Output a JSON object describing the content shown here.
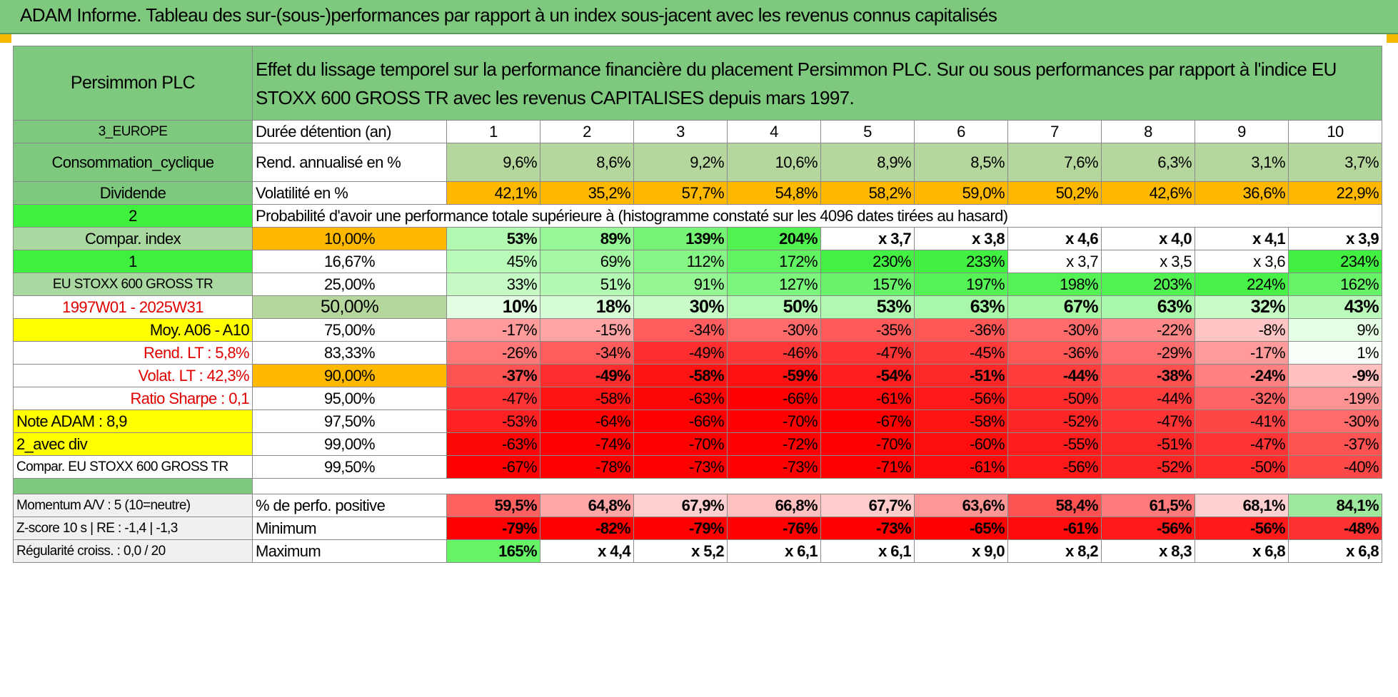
{
  "title": "ADAM Informe. Tableau des sur-(sous-)performances par rapport à un index sous-jacent avec les revenus connus capitalisés",
  "company": "Persimmon PLC",
  "description": "Effet du lissage temporel sur la performance financière du placement Persimmon PLC. Sur ou sous performances par rapport à l'indice EU STOXX 600 GROSS TR avec les revenus CAPITALISES depuis mars 1997.",
  "left": {
    "region": "3_EUROPE",
    "sector": "Consommation_cyclique",
    "dividend": "Dividende",
    "val2": "2",
    "compar_index": "Compar. index",
    "val1": "1",
    "index_name": "EU STOXX 600 GROSS TR",
    "period": "1997W01 - 2025W31",
    "moy": "Moy. A06 - A10",
    "rend_lt": "Rend. LT :    5,8%",
    "volat_lt": "Volat. LT :    42,3%",
    "sharpe": "Ratio Sharpe :    0,1",
    "note": "Note ADAM : 8,9",
    "avec_div": "2_avec div",
    "compar_full": "Compar. EU STOXX 600 GROSS TR",
    "momentum": "Momentum A/V : 5 (10=neutre)",
    "zscore": "Z-score 10 s | RE : -1,4 | -1,3",
    "regularite": "Régularité croiss. : 0,0 / 20"
  },
  "labels": {
    "duree": "Durée détention (an)",
    "rend": "Rend. annualisé en %",
    "vol": "Volatilité en %",
    "prob": "Probabilité d'avoir une performance totale supérieure à (histogramme constaté sur les 4096 dates tirées au hasard)",
    "pos": "% de perfo. positive",
    "min": "Minimum",
    "max": "Maximum"
  },
  "years": [
    "1",
    "2",
    "3",
    "4",
    "5",
    "6",
    "7",
    "8",
    "9",
    "10"
  ],
  "rend": [
    "9,6%",
    "8,6%",
    "9,2%",
    "10,6%",
    "8,9%",
    "8,5%",
    "7,6%",
    "6,3%",
    "3,1%",
    "3,7%"
  ],
  "vol": [
    "42,1%",
    "35,2%",
    "57,7%",
    "54,8%",
    "58,2%",
    "59,0%",
    "50,2%",
    "42,6%",
    "36,6%",
    "22,9%"
  ],
  "prob_rows": [
    {
      "pct": "10,00%",
      "vals": [
        "53%",
        "89%",
        "139%",
        "204%",
        "x 3,7",
        "x 3,8",
        "x 4,6",
        "x 4,0",
        "x 4,1",
        "x 3,9"
      ]
    },
    {
      "pct": "16,67%",
      "vals": [
        "45%",
        "69%",
        "112%",
        "172%",
        "230%",
        "233%",
        "x 3,7",
        "x 3,5",
        "x 3,6",
        "234%"
      ]
    },
    {
      "pct": "25,00%",
      "vals": [
        "33%",
        "51%",
        "91%",
        "127%",
        "157%",
        "197%",
        "198%",
        "203%",
        "224%",
        "162%"
      ]
    },
    {
      "pct": "50,00%",
      "vals": [
        "10%",
        "18%",
        "30%",
        "50%",
        "53%",
        "63%",
        "67%",
        "63%",
        "32%",
        "43%"
      ]
    },
    {
      "pct": "75,00%",
      "vals": [
        "-17%",
        "-15%",
        "-34%",
        "-30%",
        "-35%",
        "-36%",
        "-30%",
        "-22%",
        "-8%",
        "9%"
      ]
    },
    {
      "pct": "83,33%",
      "vals": [
        "-26%",
        "-34%",
        "-49%",
        "-46%",
        "-47%",
        "-45%",
        "-36%",
        "-29%",
        "-17%",
        "1%"
      ]
    },
    {
      "pct": "90,00%",
      "vals": [
        "-37%",
        "-49%",
        "-58%",
        "-59%",
        "-54%",
        "-51%",
        "-44%",
        "-38%",
        "-24%",
        "-9%"
      ]
    },
    {
      "pct": "95,00%",
      "vals": [
        "-47%",
        "-58%",
        "-63%",
        "-66%",
        "-61%",
        "-56%",
        "-50%",
        "-44%",
        "-32%",
        "-19%"
      ]
    },
    {
      "pct": "97,50%",
      "vals": [
        "-53%",
        "-64%",
        "-66%",
        "-70%",
        "-67%",
        "-58%",
        "-52%",
        "-47%",
        "-41%",
        "-30%"
      ]
    },
    {
      "pct": "99,00%",
      "vals": [
        "-63%",
        "-74%",
        "-70%",
        "-72%",
        "-70%",
        "-60%",
        "-55%",
        "-51%",
        "-47%",
        "-37%"
      ]
    },
    {
      "pct": "99,50%",
      "vals": [
        "-67%",
        "-78%",
        "-73%",
        "-73%",
        "-71%",
        "-61%",
        "-56%",
        "-52%",
        "-50%",
        "-40%"
      ]
    }
  ],
  "pos": [
    "59,5%",
    "64,8%",
    "67,9%",
    "66,8%",
    "67,7%",
    "63,6%",
    "58,4%",
    "61,5%",
    "68,1%",
    "84,1%"
  ],
  "min": [
    "-79%",
    "-82%",
    "-79%",
    "-76%",
    "-73%",
    "-65%",
    "-61%",
    "-56%",
    "-56%",
    "-48%"
  ],
  "max": [
    "165%",
    "x 4,4",
    "x 5,2",
    "x 6,1",
    "x 6,1",
    "x 9,0",
    "x 8,2",
    "x 8,3",
    "x 6,8",
    "x 6,8"
  ],
  "colors": {
    "header_green": "#7fc97f",
    "bright_green": "#3ff03f",
    "yellow": "#ffff00",
    "orange": "#ffb800",
    "red": "#ff0000"
  }
}
